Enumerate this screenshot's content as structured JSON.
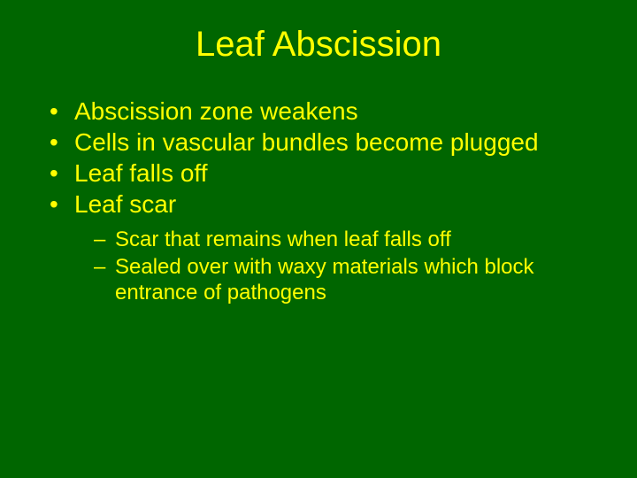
{
  "slide": {
    "background_color": "#006600",
    "text_color": "#ffff00",
    "title_fontsize": 40,
    "bullet_fontsize": 28,
    "sub_bullet_fontsize": 24,
    "font_family": "Arial",
    "title": "Leaf Abscission",
    "bullets": [
      "Abscission zone weakens",
      "Cells in vascular bundles become plugged",
      "Leaf falls off",
      "Leaf scar"
    ],
    "sub_bullets": [
      "Scar that remains when leaf falls off",
      "Sealed over with waxy materials which block entrance of pathogens"
    ]
  }
}
